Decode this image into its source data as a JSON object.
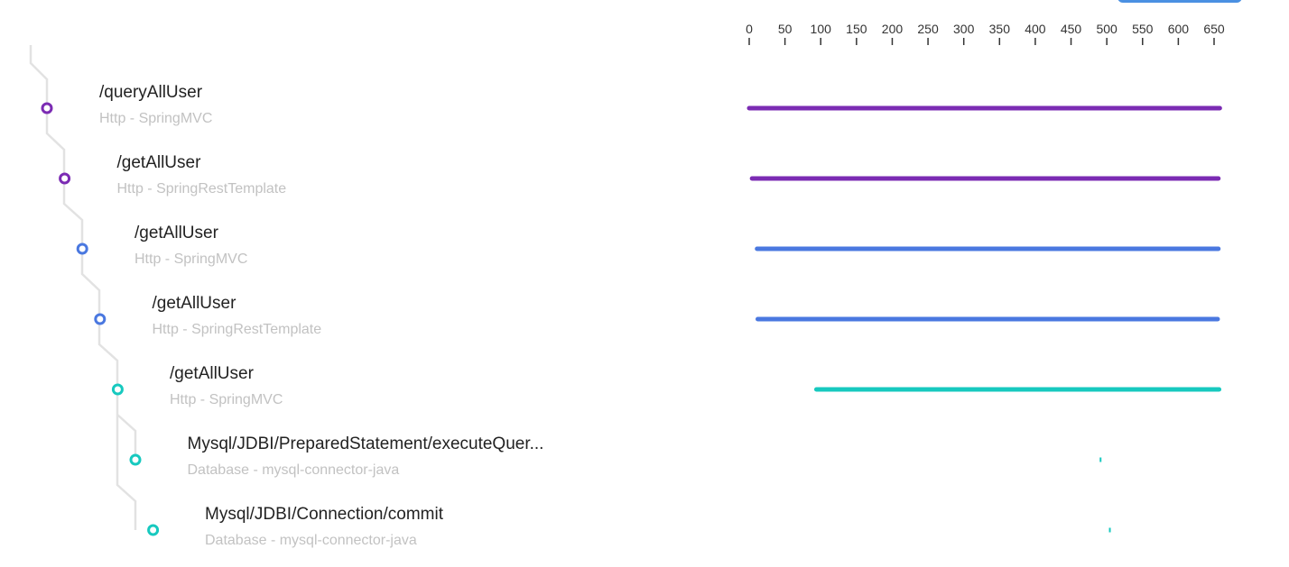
{
  "axis": {
    "ticks": [
      0,
      50,
      100,
      150,
      200,
      250,
      300,
      350,
      400,
      450,
      500,
      550,
      600,
      650
    ]
  },
  "colors": {
    "purple": "#7b2bb3",
    "blue": "#4a78e0",
    "teal": "#17c9bf",
    "tree_line": "#e2e2e2"
  },
  "spans": [
    {
      "title": "/queryAllUser",
      "subtitle": "Http - SpringMVC",
      "color": "#7b2bb3",
      "start": 0,
      "end": 658
    },
    {
      "title": "/getAllUser",
      "subtitle": "Http - SpringRestTemplate",
      "color": "#7b2bb3",
      "start": 4,
      "end": 656
    },
    {
      "title": "/getAllUser",
      "subtitle": "Http - SpringMVC",
      "color": "#4a78e0",
      "start": 11,
      "end": 656
    },
    {
      "title": "/getAllUser",
      "subtitle": "Http - SpringRestTemplate",
      "color": "#4a78e0",
      "start": 12,
      "end": 655
    },
    {
      "title": "/getAllUser",
      "subtitle": "Http - SpringMVC",
      "color": "#17c9bf",
      "start": 94,
      "end": 657
    },
    {
      "title": "Mysql/JDBI/PreparedStatement/executeQuer...",
      "subtitle": "Database - mysql-connector-java",
      "color": "#17c9bf",
      "start": 490,
      "end": 492
    },
    {
      "title": "Mysql/JDBI/Connection/commit",
      "subtitle": "Database - mysql-connector-java",
      "color": "#17c9bf",
      "start": 503,
      "end": 505
    }
  ]
}
